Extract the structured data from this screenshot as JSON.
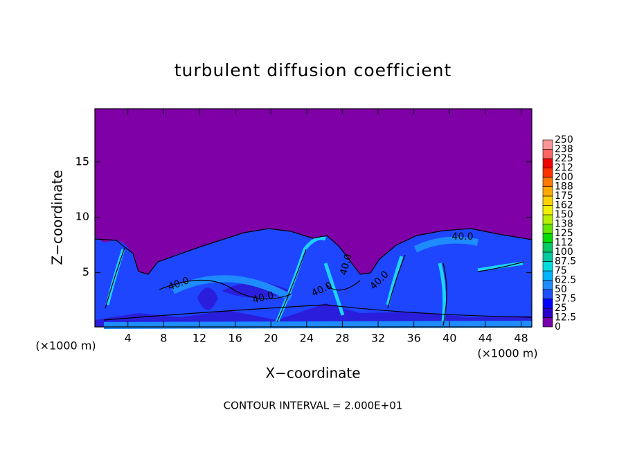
{
  "chart_data": {
    "type": "contour",
    "title": "turbulent diffusion coefficient",
    "x_label": "X−coordinate",
    "y_label": "Z−coordinate",
    "x_unit": "(×1000 m)",
    "footnote": "CONTOUR INTERVAL = 2.000E+01",
    "xlim": [
      0.3,
      49.2
    ],
    "ylim": [
      0.1,
      19.8
    ],
    "xticks": [
      4,
      8,
      12,
      16,
      20,
      24,
      28,
      32,
      36,
      40,
      44,
      48
    ],
    "yticks": [
      5,
      10,
      15
    ],
    "contour_labels": [
      "40.0",
      "40.0",
      "40.0",
      "40.0",
      "40.0",
      "40.0"
    ],
    "colorbar": {
      "lim": [
        0,
        250
      ],
      "ticks": [
        0,
        12.5,
        25,
        37.5,
        50,
        62.5,
        75,
        87.5,
        100,
        {
          "value": 112.5,
          "label": "112"
        },
        125,
        {
          "value": 137.5,
          "label": "138"
        },
        150,
        {
          "value": 162.5,
          "label": "162"
        },
        175,
        {
          "value": 187.5,
          "label": "188"
        },
        200,
        {
          "value": 212.5,
          "label": "212"
        },
        225,
        {
          "value": 237.5,
          "label": "238"
        },
        250
      ],
      "colors": [
        "#7800a8",
        "#2800c8",
        "#0000ff",
        "#1e50ff",
        "#1e8cff",
        "#00b4ff",
        "#00dcdc",
        "#00c8a0",
        "#00c864",
        "#00dc00",
        "#64e600",
        "#b4f000",
        "#f0f000",
        "#ffd200",
        "#ffaa00",
        "#ff7800",
        "#ff3200",
        "#f00000",
        "#ff6464",
        "#ff9696"
      ]
    }
  }
}
